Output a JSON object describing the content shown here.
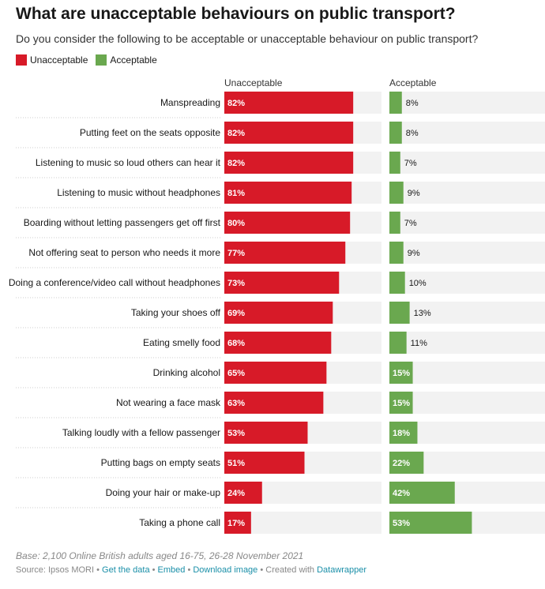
{
  "title": "What are unacceptable behaviours on public transport?",
  "subtitle": "Do you consider the following to be acceptable or unacceptable behaviour on public transport?",
  "legend": [
    {
      "label": "Unacceptable",
      "color": "#d71a28"
    },
    {
      "label": "Acceptable",
      "color": "#6aa84f"
    }
  ],
  "colors": {
    "unacceptable": "#d71a28",
    "acceptable": "#6aa84f",
    "track": "#f2f2f2"
  },
  "chart_data": {
    "type": "bar",
    "title": "What are unacceptable behaviours on public transport?",
    "subtitle": "Do you consider the following to be acceptable or unacceptable behaviour on public transport?",
    "unit": "%",
    "xlim": [
      0,
      100
    ],
    "legend_position": "top-left",
    "grid": false,
    "categories": [
      "Manspreading",
      "Putting feet on the seats opposite",
      "Listening to music so loud others can hear it",
      "Listening to music without headphones",
      "Boarding without letting passengers get off first",
      "Not offering seat to person who needs it more",
      "Doing a conference/video call without headphones",
      "Taking your shoes off",
      "Eating smelly food",
      "Drinking alcohol",
      "Not wearing a face mask",
      "Talking loudly with a fellow passenger",
      "Putting bags on empty seats",
      "Doing your hair or make-up",
      "Taking a phone call"
    ],
    "series": [
      {
        "name": "Unacceptable",
        "values": [
          82,
          82,
          82,
          81,
          80,
          77,
          73,
          69,
          68,
          65,
          63,
          53,
          51,
          24,
          17
        ]
      },
      {
        "name": "Acceptable",
        "values": [
          8,
          8,
          7,
          9,
          7,
          9,
          10,
          13,
          11,
          15,
          15,
          18,
          22,
          42,
          53
        ]
      }
    ]
  },
  "notes": "Base: 2,100 Online British adults aged 16-75, 26-28 November 2021",
  "footer": {
    "source": "Source: Ipsos MORI",
    "sep": " • ",
    "get_data": "Get the data",
    "embed": "Embed",
    "download": "Download image",
    "created": "Created with",
    "tool": "Datawrapper"
  }
}
